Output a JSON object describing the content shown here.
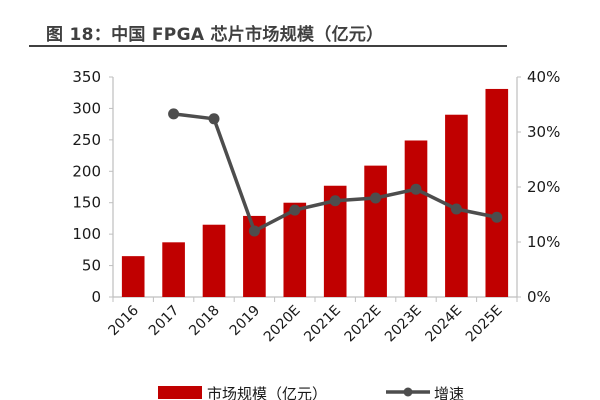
{
  "figure": {
    "title": "图 18：中国 FPGA 芯片市场规模（亿元）"
  },
  "chart_data": {
    "type": "bar+line",
    "title": "图 18：中国 FPGA 芯片市场规模（亿元）",
    "categories": [
      "2016",
      "2017",
      "2018",
      "2019",
      "2020E",
      "2021E",
      "2022E",
      "2023E",
      "2024E",
      "2025E"
    ],
    "series": [
      {
        "name": "市场规模（亿元）",
        "type": "bar",
        "axis": "left",
        "color": "#C00000",
        "values": [
          65,
          87,
          115,
          129,
          150,
          177,
          209,
          249,
          290,
          331
        ]
      },
      {
        "name": "增速",
        "type": "line",
        "axis": "right",
        "color": "#4D4D4D",
        "values": [
          null,
          0.333,
          0.324,
          0.12,
          0.158,
          0.175,
          0.18,
          0.196,
          0.16,
          0.145
        ]
      }
    ],
    "left_axis": {
      "ylim": [
        0,
        350
      ],
      "ticks": [
        "0",
        "50",
        "100",
        "150",
        "200",
        "250",
        "300",
        "350"
      ]
    },
    "right_axis": {
      "ylim": [
        0,
        0.4
      ],
      "ticks": [
        "0%",
        "10%",
        "20%",
        "30%",
        "40%"
      ]
    },
    "grid": false,
    "legend_position": "bottom"
  },
  "legend": {
    "bar_label": "市场规模（亿元）",
    "line_label": "增速"
  }
}
